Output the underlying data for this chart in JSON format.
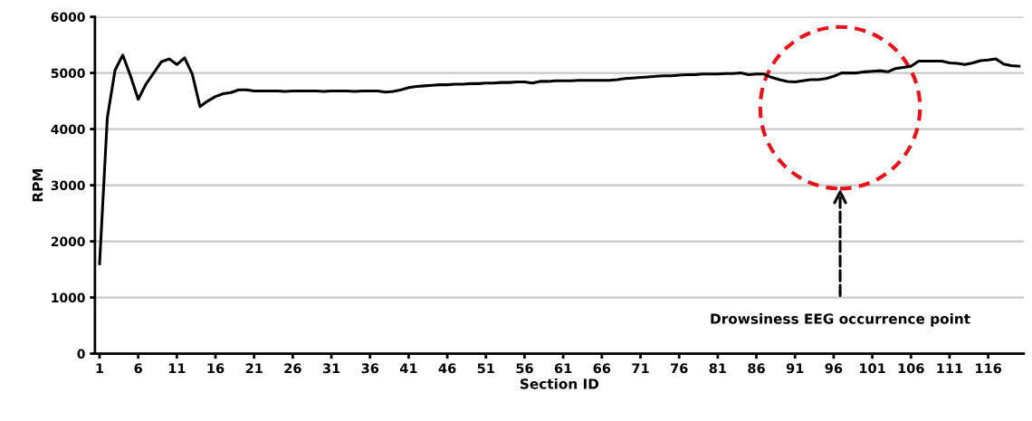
{
  "chart_data": {
    "type": "line",
    "xlabel": "Section ID",
    "ylabel": "RPM",
    "categories": [
      "1",
      null,
      null,
      null,
      null,
      "6",
      null,
      null,
      null,
      null,
      "11",
      null,
      null,
      null,
      null,
      "16",
      null,
      null,
      null,
      null,
      "21",
      null,
      null,
      null,
      null,
      "26",
      null,
      null,
      null,
      null,
      "31",
      null,
      null,
      null,
      null,
      "36",
      null,
      null,
      null,
      null,
      "41",
      null,
      null,
      null,
      null,
      "46",
      null,
      null,
      null,
      null,
      "51",
      null,
      null,
      null,
      null,
      "56",
      null,
      null,
      null,
      null,
      "61",
      null,
      null,
      null,
      null,
      "66",
      null,
      null,
      null,
      null,
      "71",
      null,
      null,
      null,
      null,
      "76",
      null,
      null,
      null,
      null,
      "81",
      null,
      null,
      null,
      null,
      "86",
      null,
      null,
      null,
      null,
      "91",
      null,
      null,
      null,
      null,
      "96",
      null,
      null,
      null,
      null,
      "101",
      null,
      null,
      null,
      null,
      "106",
      null,
      null,
      null,
      null,
      "111",
      null,
      null,
      null,
      null,
      "116",
      null,
      null,
      null,
      null
    ],
    "series": [
      {
        "color": "#000000",
        "values": [
          1600,
          4200,
          5050,
          5320,
          4950,
          4530,
          4800,
          5000,
          5200,
          5250,
          5150,
          5270,
          4980,
          4400,
          4500,
          4580,
          4630,
          4650,
          4700,
          4700,
          4680,
          4680,
          4680,
          4680,
          4670,
          4680,
          4680,
          4680,
          4680,
          4670,
          4680,
          4680,
          4680,
          4670,
          4680,
          4680,
          4680,
          4660,
          4670,
          4700,
          4740,
          4760,
          4770,
          4780,
          4790,
          4790,
          4800,
          4800,
          4810,
          4810,
          4820,
          4820,
          4830,
          4830,
          4840,
          4840,
          4820,
          4850,
          4850,
          4860,
          4860,
          4860,
          4870,
          4870,
          4870,
          4870,
          4870,
          4880,
          4900,
          4910,
          4920,
          4930,
          4940,
          4950,
          4950,
          4960,
          4970,
          4970,
          4980,
          4980,
          4980,
          4990,
          4990,
          5000,
          4970,
          4980,
          4980,
          4920,
          4880,
          4850,
          4840,
          4860,
          4880,
          4880,
          4900,
          4940,
          5000,
          5000,
          5000,
          5020,
          5030,
          5040,
          5020,
          5080,
          5100,
          5120,
          5210,
          5210,
          5210,
          5210,
          5180,
          5170,
          5150,
          5180,
          5220,
          5230,
          5250,
          5160,
          5130,
          5120
        ]
      }
    ],
    "ylim": [
      0,
      6000
    ],
    "yticks": [
      0,
      1000,
      2000,
      3000,
      4000,
      5000,
      6000
    ],
    "grid": "y",
    "legend": false,
    "marker": "none",
    "line_style": "solid",
    "annotations": [
      "Drowsiness EEG occurrence point"
    ]
  }
}
